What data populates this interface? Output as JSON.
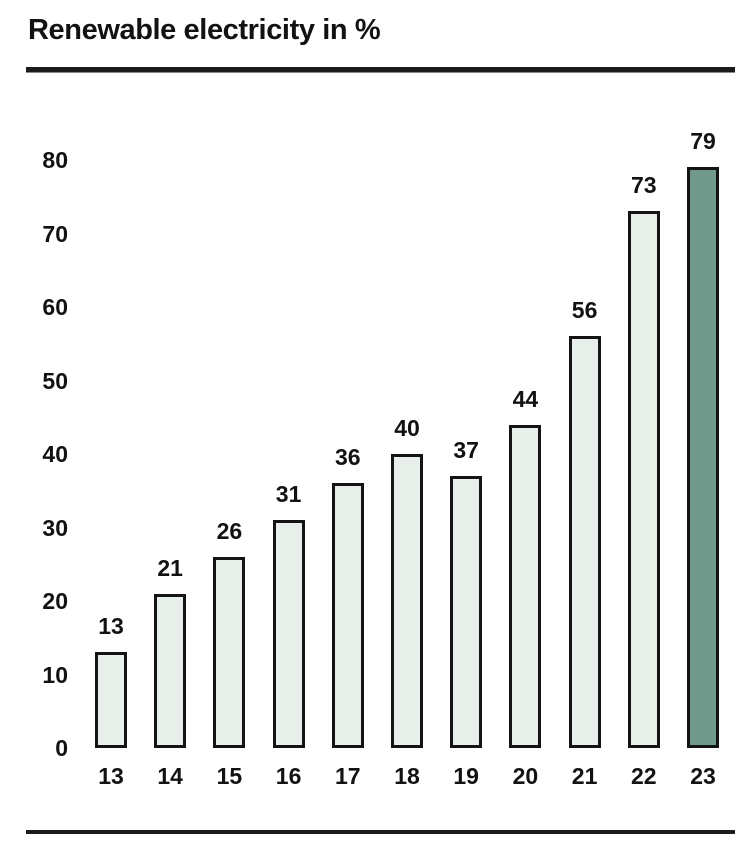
{
  "title": "Renewable electricity in %",
  "chart_data": {
    "type": "bar",
    "title": "Renewable electricity in %",
    "categories": [
      "13",
      "14",
      "15",
      "16",
      "17",
      "18",
      "19",
      "20",
      "21",
      "22",
      "23"
    ],
    "values": [
      13,
      21,
      26,
      31,
      36,
      40,
      37,
      44,
      56,
      73,
      79
    ],
    "bar_labels": [
      "13",
      "21",
      "26",
      "31",
      "36",
      "40",
      "37",
      "44",
      "56",
      "73",
      "79"
    ],
    "xlabel": "",
    "ylabel": "",
    "ylim": [
      0,
      80
    ],
    "yticks": [
      0,
      10,
      20,
      30,
      40,
      50,
      60,
      70,
      80
    ],
    "grid": false,
    "legend": false,
    "highlight_index": 10,
    "colors": {
      "bar_fill": "#e8eeea",
      "bar_border": "#141414",
      "highlight_fill": "#71998c",
      "text": "#121212",
      "rule": "#1b1b1b"
    }
  }
}
